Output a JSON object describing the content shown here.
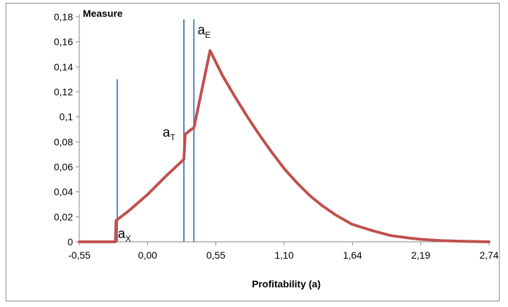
{
  "chart_data": {
    "type": "line",
    "title": "",
    "ylabel": "Measure",
    "xlabel": "Profitability (a)",
    "x_ticks": [
      "-0,55",
      "0,00",
      "0,55",
      "1,10",
      "1,64",
      "2,19",
      "2,74"
    ],
    "y_ticks": [
      "0",
      "0,02",
      "0,04",
      "0,06",
      "0,08",
      "0,1",
      "0,12",
      "0,14",
      "0,16",
      "0,18"
    ],
    "xlim": [
      -0.55,
      2.74
    ],
    "ylim": [
      0,
      0.18
    ],
    "grid": false,
    "series": [
      {
        "color": "#c0504d",
        "x": [
          -0.55,
          -0.26,
          -0.255,
          -0.15,
          0.0,
          0.15,
          0.29,
          0.3,
          0.35,
          0.37,
          0.5,
          0.6,
          0.7,
          0.8,
          0.9,
          1.0,
          1.1,
          1.2,
          1.3,
          1.4,
          1.5,
          1.64,
          1.8,
          1.95,
          2.1,
          2.19,
          2.35,
          2.5,
          2.74
        ],
        "y": [
          0.0,
          0.0,
          0.017,
          0.025,
          0.038,
          0.053,
          0.066,
          0.086,
          0.09,
          0.091,
          0.153,
          0.133,
          0.116,
          0.1,
          0.085,
          0.071,
          0.058,
          0.047,
          0.037,
          0.029,
          0.022,
          0.014,
          0.009,
          0.005,
          0.003,
          0.002,
          0.001,
          0.0005,
          0.0
        ]
      }
    ],
    "vlines": [
      {
        "x": -0.245,
        "ymax": 0.13,
        "color": "#4f81bd"
      },
      {
        "x": 0.29,
        "ymax": 0.178,
        "color": "#4f81bd"
      },
      {
        "x": 0.37,
        "ymax": 0.178,
        "color": "#4f81bd"
      }
    ],
    "annotations": [
      {
        "base": "a",
        "sub": "X",
        "x": -0.24,
        "y": 0.003
      },
      {
        "base": "a",
        "sub": "T",
        "x": 0.12,
        "y": 0.084
      },
      {
        "base": "a",
        "sub": "E",
        "x": 0.4,
        "y": 0.166
      }
    ]
  }
}
